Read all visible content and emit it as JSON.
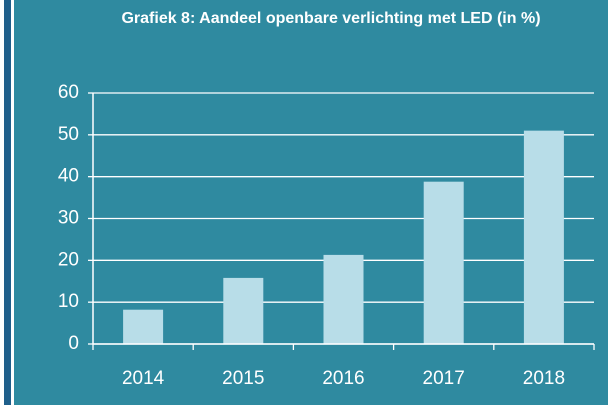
{
  "chart_data": {
    "type": "bar",
    "title": "Grafiek 8: Aandeel openbare verlichting met LED (in %)",
    "categories": [
      "2014",
      "2015",
      "2016",
      "2017",
      "2018"
    ],
    "values": [
      8.2,
      15.8,
      21.3,
      38.8,
      51
    ],
    "color": "#b8dde8",
    "ylim": [
      0,
      60
    ],
    "yticks": [
      0,
      10,
      20,
      30,
      40,
      50,
      60
    ],
    "grid": true
  }
}
